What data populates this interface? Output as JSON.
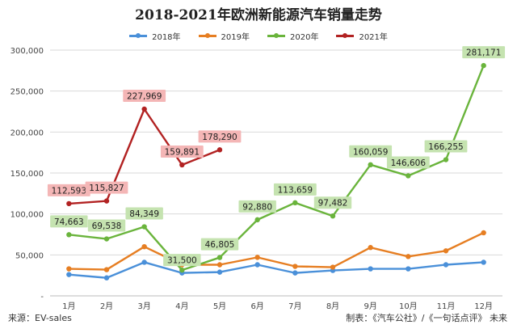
{
  "chart_data": {
    "type": "line",
    "title": "2018-2021年欧洲新能源汽车销量走势",
    "categories": [
      "1月",
      "2月",
      "3月",
      "4月",
      "5月",
      "6月",
      "7月",
      "8月",
      "9月",
      "10月",
      "11月",
      "12月"
    ],
    "ylim": [
      0,
      300000
    ],
    "yticks": [
      0,
      50000,
      100000,
      150000,
      200000,
      250000,
      300000
    ],
    "ytick_labels": [
      "-",
      "50,000",
      "100,000",
      "150,000",
      "200,000",
      "250,000",
      "300,000"
    ],
    "grid": true,
    "legend_position": "top",
    "series": [
      {
        "name": "2018年",
        "color": "#4a90d9",
        "values": [
          26000,
          22000,
          41000,
          28000,
          29000,
          38000,
          28000,
          31000,
          33000,
          33000,
          38000,
          41000
        ],
        "labels": null
      },
      {
        "name": "2019年",
        "color": "#e67e22",
        "values": [
          33000,
          32000,
          60000,
          38000,
          38000,
          47000,
          36000,
          35000,
          59000,
          48000,
          55000,
          77000
        ],
        "labels": null
      },
      {
        "name": "2020年",
        "color": "#6ab43c",
        "values": [
          74663,
          69538,
          84349,
          31500,
          46805,
          92880,
          113659,
          97482,
          160059,
          146606,
          166255,
          281171
        ],
        "labels": [
          "74,663",
          "69,538",
          "84,349",
          "31,500",
          "46,805",
          "92,880",
          "113,659",
          "97,482",
          "160,059",
          "146,606",
          "166,255",
          "281,171"
        ]
      },
      {
        "name": "2021年",
        "color": "#b22222",
        "values": [
          112593,
          115827,
          227969,
          159891,
          178290,
          null,
          null,
          null,
          null,
          null,
          null,
          null
        ],
        "labels": [
          "112,593",
          "115,827",
          "227,969",
          "159,891",
          "178,290",
          null,
          null,
          null,
          null,
          null,
          null,
          null
        ]
      }
    ]
  },
  "source_text": "来源：EV-sales",
  "credit_text": "制表：《汽车公社》/《一句话点评》 未来"
}
